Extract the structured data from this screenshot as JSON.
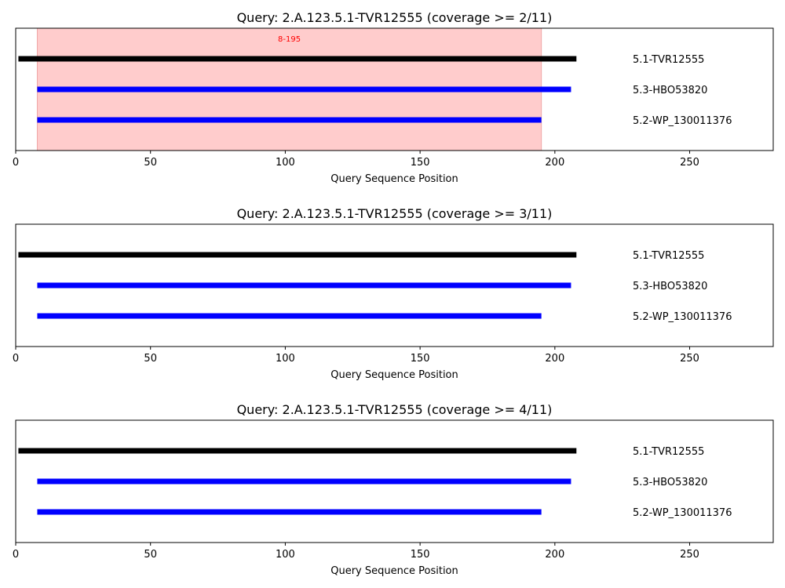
{
  "chart_data": [
    {
      "type": "line",
      "title": "Query: 2.A.123.5.1-TVR12555 (coverage >= 2/11)",
      "xlabel": "Query Sequence Position",
      "xlim": [
        0,
        281
      ],
      "xticks": [
        0,
        50,
        100,
        150,
        200,
        250
      ],
      "tick_labels": [
        "0",
        "50",
        "100",
        "150",
        "200",
        "250"
      ],
      "highlight": {
        "start": 8,
        "end": 195,
        "label": "8-195",
        "color": "#ffcccc",
        "label_color": "#ff0000"
      },
      "series": [
        {
          "name": "5.1-TVR12555",
          "start": 1,
          "end": 208,
          "color": "#000000"
        },
        {
          "name": "5.3-HBO53820",
          "start": 8,
          "end": 206,
          "color": "#0000ff"
        },
        {
          "name": "5.2-WP_130011376",
          "start": 8,
          "end": 195,
          "color": "#0000ff"
        }
      ]
    },
    {
      "type": "line",
      "title": "Query: 2.A.123.5.1-TVR12555 (coverage >= 3/11)",
      "xlabel": "Query Sequence Position",
      "xlim": [
        0,
        281
      ],
      "xticks": [
        0,
        50,
        100,
        150,
        200,
        250
      ],
      "tick_labels": [
        "0",
        "50",
        "100",
        "150",
        "200",
        "250"
      ],
      "highlight": null,
      "series": [
        {
          "name": "5.1-TVR12555",
          "start": 1,
          "end": 208,
          "color": "#000000"
        },
        {
          "name": "5.3-HBO53820",
          "start": 8,
          "end": 206,
          "color": "#0000ff"
        },
        {
          "name": "5.2-WP_130011376",
          "start": 8,
          "end": 195,
          "color": "#0000ff"
        }
      ]
    },
    {
      "type": "line",
      "title": "Query: 2.A.123.5.1-TVR12555 (coverage >= 4/11)",
      "xlabel": "Query Sequence Position",
      "xlim": [
        0,
        281
      ],
      "xticks": [
        0,
        50,
        100,
        150,
        200,
        250
      ],
      "tick_labels": [
        "0",
        "50",
        "100",
        "150",
        "200",
        "250"
      ],
      "highlight": null,
      "series": [
        {
          "name": "5.1-TVR12555",
          "start": 1,
          "end": 208,
          "color": "#000000"
        },
        {
          "name": "5.3-HBO53820",
          "start": 8,
          "end": 206,
          "color": "#0000ff"
        },
        {
          "name": "5.2-WP_130011376",
          "start": 8,
          "end": 195,
          "color": "#0000ff"
        }
      ]
    }
  ]
}
